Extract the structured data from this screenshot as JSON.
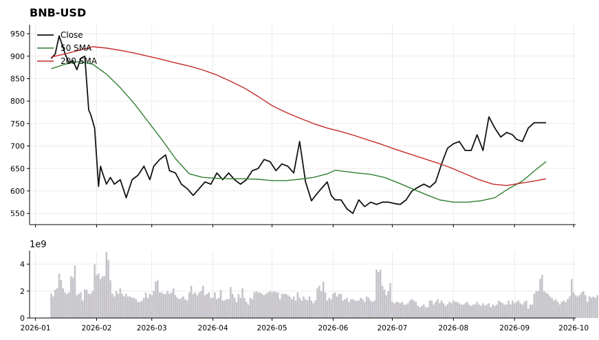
{
  "chart_data": [
    {
      "type": "line",
      "title": "BNB-USD",
      "ylim": [
        525,
        970
      ],
      "y_ticks": [
        550,
        600,
        650,
        700,
        750,
        800,
        850,
        900,
        950
      ],
      "grid": true,
      "legend_position": "top-left",
      "x_range": [
        "2025-12-29",
        "2026-10-02"
      ],
      "x_ticks": [
        "2026-01",
        "2026-02",
        "2026-03",
        "2026-04",
        "2026-05",
        "2026-06",
        "2026-07",
        "2026-08",
        "2026-09",
        "2026-10"
      ],
      "series": [
        {
          "name": "Close",
          "color": "#111111",
          "x": [
            "2026-01-09",
            "2026-01-11",
            "2026-01-13",
            "2026-01-15",
            "2026-01-16",
            "2026-01-18",
            "2026-01-20",
            "2026-01-22",
            "2026-01-24",
            "2026-01-26",
            "2026-01-28",
            "2026-01-29",
            "2026-01-31",
            "2026-02-02",
            "2026-02-03",
            "2026-02-04",
            "2026-02-06",
            "2026-02-08",
            "2026-02-10",
            "2026-02-13",
            "2026-02-16",
            "2026-02-19",
            "2026-02-22",
            "2026-02-25",
            "2026-02-28",
            "2026-03-02",
            "2026-03-05",
            "2026-03-08",
            "2026-03-10",
            "2026-03-13",
            "2026-03-16",
            "2026-03-19",
            "2026-03-22",
            "2026-03-25",
            "2026-03-28",
            "2026-03-31",
            "2026-04-03",
            "2026-04-06",
            "2026-04-09",
            "2026-04-12",
            "2026-04-15",
            "2026-04-18",
            "2026-04-21",
            "2026-04-24",
            "2026-04-27",
            "2026-04-30",
            "2026-05-03",
            "2026-05-06",
            "2026-05-09",
            "2026-05-12",
            "2026-05-15",
            "2026-05-18",
            "2026-05-21",
            "2026-05-24",
            "2026-05-27",
            "2026-05-29",
            "2026-05-31",
            "2026-06-02",
            "2026-06-05",
            "2026-06-08",
            "2026-06-11",
            "2026-06-14",
            "2026-06-17",
            "2026-06-20",
            "2026-06-23",
            "2026-06-26",
            "2026-06-29",
            "2026-07-02",
            "2026-07-05",
            "2026-07-08",
            "2026-07-11",
            "2026-07-14",
            "2026-07-17",
            "2026-07-20",
            "2026-07-23",
            "2026-07-26",
            "2026-07-29",
            "2026-08-01",
            "2026-08-04",
            "2026-08-07",
            "2026-08-10",
            "2026-08-13",
            "2026-08-16",
            "2026-08-19",
            "2026-08-22",
            "2026-08-25",
            "2026-08-28",
            "2026-08-31",
            "2026-09-02",
            "2026-09-05",
            "2026-09-08",
            "2026-09-11",
            "2026-09-14",
            "2026-09-17"
          ],
          "values": [
            895,
            905,
            945,
            920,
            905,
            885,
            890,
            870,
            895,
            900,
            780,
            770,
            740,
            610,
            655,
            640,
            615,
            630,
            615,
            625,
            585,
            625,
            635,
            655,
            625,
            655,
            670,
            680,
            645,
            640,
            615,
            605,
            590,
            605,
            620,
            615,
            640,
            625,
            640,
            625,
            615,
            625,
            645,
            650,
            670,
            665,
            645,
            660,
            655,
            640,
            710,
            620,
            578,
            595,
            610,
            620,
            590,
            580,
            580,
            560,
            550,
            580,
            565,
            575,
            570,
            575,
            575,
            572,
            570,
            580,
            600,
            608,
            615,
            608,
            620,
            660,
            695,
            705,
            710,
            690,
            690,
            725,
            690,
            765,
            740,
            720,
            730,
            725,
            715,
            710,
            740,
            752,
            752,
            752
          ]
        },
        {
          "name": "50 SMA",
          "color": "#2e7d32",
          "x": [
            "2026-01-09",
            "2026-01-16",
            "2026-01-23",
            "2026-01-30",
            "2026-02-06",
            "2026-02-13",
            "2026-02-20",
            "2026-02-27",
            "2026-03-06",
            "2026-03-13",
            "2026-03-20",
            "2026-03-27",
            "2026-04-03",
            "2026-04-10",
            "2026-04-17",
            "2026-04-24",
            "2026-05-01",
            "2026-05-08",
            "2026-05-15",
            "2026-05-22",
            "2026-05-29",
            "2026-06-02",
            "2026-06-06",
            "2026-06-13",
            "2026-06-20",
            "2026-06-27",
            "2026-07-04",
            "2026-07-11",
            "2026-07-18",
            "2026-07-25",
            "2026-08-01",
            "2026-08-08",
            "2026-08-15",
            "2026-08-22",
            "2026-08-29",
            "2026-09-05",
            "2026-09-12",
            "2026-09-17"
          ],
          "values": [
            872,
            882,
            888,
            882,
            860,
            830,
            795,
            755,
            715,
            672,
            638,
            630,
            628,
            627,
            627,
            626,
            623,
            623,
            626,
            630,
            638,
            646,
            644,
            640,
            637,
            630,
            618,
            605,
            592,
            580,
            575,
            575,
            578,
            585,
            605,
            622,
            648,
            665
          ]
        },
        {
          "name": "200 SMA",
          "color": "#c62828",
          "x": [
            "2026-01-09",
            "2026-01-16",
            "2026-01-23",
            "2026-01-30",
            "2026-02-06",
            "2026-02-13",
            "2026-02-20",
            "2026-02-27",
            "2026-03-06",
            "2026-03-13",
            "2026-03-20",
            "2026-03-27",
            "2026-04-03",
            "2026-04-10",
            "2026-04-17",
            "2026-04-24",
            "2026-05-01",
            "2026-05-08",
            "2026-05-15",
            "2026-05-22",
            "2026-05-29",
            "2026-06-05",
            "2026-06-12",
            "2026-06-19",
            "2026-06-26",
            "2026-07-03",
            "2026-07-10",
            "2026-07-17",
            "2026-07-24",
            "2026-07-31",
            "2026-08-07",
            "2026-08-14",
            "2026-08-21",
            "2026-08-28",
            "2026-09-04",
            "2026-09-11",
            "2026-09-17"
          ],
          "values": [
            898,
            905,
            913,
            921,
            918,
            913,
            907,
            900,
            893,
            885,
            878,
            869,
            858,
            844,
            829,
            810,
            790,
            775,
            762,
            750,
            740,
            732,
            723,
            713,
            703,
            692,
            682,
            672,
            662,
            651,
            638,
            625,
            615,
            612,
            617,
            622,
            627
          ]
        }
      ]
    },
    {
      "type": "bar",
      "ylabel_multiplier": "1e9",
      "ylim": [
        0,
        5
      ],
      "y_ticks": [
        0,
        2,
        4
      ],
      "grid": true,
      "color": "#c5c3c9",
      "x_range": [
        "2025-12-29",
        "2026-10-02"
      ],
      "x_ticks": [
        "2026-01",
        "2026-02",
        "2026-03",
        "2026-04",
        "2026-05",
        "2026-06",
        "2026-07",
        "2026-08",
        "2026-09",
        "2026-10"
      ],
      "start_date": "2026-01-09",
      "values": [
        1.8,
        1.6,
        2.1,
        2.2,
        3.3,
        2.8,
        2.2,
        1.9,
        1.8,
        1.9,
        3.1,
        3.0,
        3.9,
        1.7,
        1.8,
        1.9,
        1.3,
        2.1,
        2.1,
        1.8,
        1.8,
        2.0,
        4.0,
        3.2,
        3.3,
        2.9,
        3.1,
        3.1,
        4.9,
        4.3,
        2.8,
        1.8,
        1.6,
        2.0,
        1.8,
        2.2,
        1.8,
        1.6,
        1.8,
        1.6,
        1.6,
        1.5,
        1.5,
        1.4,
        1.2,
        1.2,
        1.3,
        1.5,
        1.9,
        1.5,
        1.8,
        1.7,
        2.0,
        2.7,
        2.8,
        1.9,
        1.9,
        1.8,
        1.8,
        2.0,
        1.8,
        1.9,
        2.2,
        1.7,
        1.5,
        1.4,
        1.5,
        1.6,
        1.4,
        1.3,
        1.9,
        2.4,
        1.8,
        1.9,
        1.7,
        1.9,
        2.0,
        2.4,
        1.7,
        1.8,
        1.9,
        1.5,
        1.5,
        1.9,
        1.4,
        1.5,
        2.1,
        1.3,
        1.3,
        1.4,
        1.4,
        2.3,
        1.8,
        1.5,
        1.2,
        1.8,
        1.5,
        2.2,
        1.5,
        1.2,
        1.0,
        1.5,
        1.4,
        1.9,
        2.0,
        1.9,
        1.9,
        1.8,
        1.7,
        1.8,
        1.9,
        2.0,
        1.9,
        2.0,
        1.9,
        1.9,
        1.4,
        1.8,
        1.8,
        1.8,
        1.7,
        1.6,
        1.4,
        1.6,
        1.3,
        1.9,
        1.5,
        1.3,
        1.6,
        1.4,
        1.3,
        1.6,
        1.3,
        1.1,
        1.3,
        2.2,
        2.4,
        2.0,
        2.7,
        1.9,
        1.3,
        1.5,
        1.4,
        1.8,
        1.9,
        1.6,
        1.8,
        1.8,
        1.3,
        1.4,
        1.5,
        1.2,
        1.4,
        1.4,
        1.3,
        1.3,
        1.3,
        1.5,
        1.4,
        1.2,
        1.6,
        1.5,
        1.3,
        1.2,
        1.3,
        3.6,
        3.4,
        3.6,
        2.4,
        2.1,
        1.7,
        2.0,
        2.6,
        1.2,
        1.1,
        1.2,
        1.2,
        1.1,
        1.2,
        1.0,
        1.0,
        1.1,
        1.3,
        1.4,
        1.3,
        1.2,
        0.9,
        0.8,
        0.9,
        1.0,
        0.8,
        0.8,
        1.3,
        1.3,
        1.0,
        1.2,
        1.4,
        1.1,
        1.3,
        1.1,
        0.9,
        1.0,
        1.2,
        1.1,
        1.3,
        1.2,
        1.2,
        1.1,
        1.0,
        1.0,
        1.1,
        1.2,
        1.0,
        0.9,
        1.0,
        1.0,
        1.2,
        1.0,
        0.9,
        1.1,
        0.9,
        1.0,
        1.1,
        0.8,
        1.0,
        0.9,
        1.0,
        1.3,
        1.2,
        1.1,
        1.0,
        1.0,
        1.3,
        1.0,
        1.3,
        1.1,
        1.2,
        1.3,
        1.1,
        1.0,
        1.2,
        1.3,
        0.7,
        1.0,
        1.0,
        1.8,
        2.0,
        2.0,
        2.9,
        3.2,
        2.0,
        1.9,
        1.8,
        1.6,
        1.5,
        1.3,
        1.4,
        1.2,
        1.0,
        1.2,
        1.3,
        1.2,
        1.4,
        1.6,
        2.9,
        1.9,
        1.7,
        1.6,
        1.7,
        1.9,
        2.0,
        1.7,
        1.2,
        1.6,
        1.5,
        1.6,
        1.5,
        1.7
      ]
    }
  ]
}
